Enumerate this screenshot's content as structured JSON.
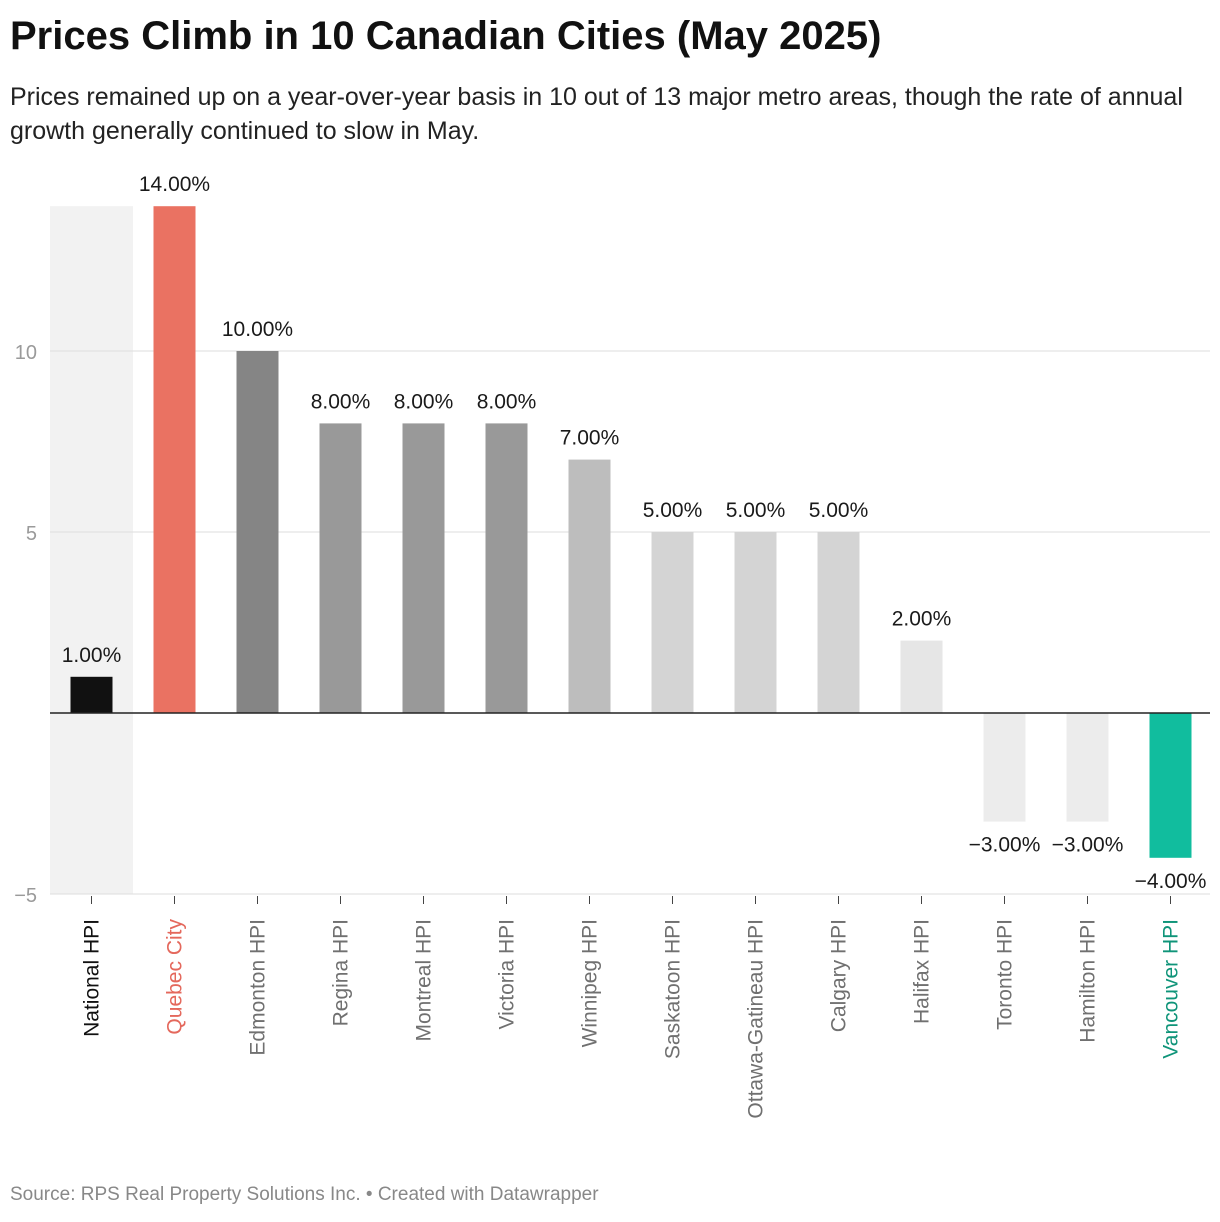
{
  "title": "Prices Climb in 10 Canadian Cities (May 2025)",
  "subtitle": "Prices remained up on a year-over-year basis in 10 out of 13 major metro areas, though the rate of annual growth generally continued to slow in May.",
  "footer": {
    "source": "Source: RPS Real Property Solutions Inc.",
    "separator": "•",
    "credit": "Created with Datawrapper"
  },
  "chart_data": {
    "type": "bar",
    "title": "Prices Climb in 10 Canadian Cities (May 2025)",
    "xlabel": "",
    "ylabel": "",
    "ylim": [
      -5,
      14
    ],
    "yticks": [
      -5,
      5,
      10
    ],
    "ytick_labels": [
      "−5",
      "5",
      "10"
    ],
    "grid": true,
    "legend": "none",
    "categories": [
      "National HPI",
      "Quebec City",
      "Edmonton HPI",
      "Regina HPI",
      "Montreal HPI",
      "Victoria HPI",
      "Winnipeg HPI",
      "Saskatoon HPI",
      "Ottawa-Gatineau HPI",
      "Calgary HPI",
      "Halifax HPI",
      "Toronto HPI",
      "Hamilton HPI",
      "Vancouver HPI"
    ],
    "values": [
      1,
      14,
      10,
      8,
      8,
      8,
      7,
      5,
      5,
      5,
      2,
      -3,
      -3,
      -4
    ],
    "value_labels": [
      "1.00%",
      "14.00%",
      "10.00%",
      "8.00%",
      "8.00%",
      "8.00%",
      "7.00%",
      "5.00%",
      "5.00%",
      "5.00%",
      "2.00%",
      "−3.00%",
      "−3.00%",
      "−4.00%"
    ],
    "bar_colors": [
      "#111111",
      "#ea7262",
      "#858585",
      "#999999",
      "#999999",
      "#999999",
      "#bdbdbd",
      "#d4d4d4",
      "#d4d4d4",
      "#d4d4d4",
      "#e6e6e6",
      "#ececec",
      "#ececec",
      "#11bd9e"
    ],
    "label_colors": [
      "#111111",
      "#e4685c",
      "#707070",
      "#707070",
      "#707070",
      "#707070",
      "#707070",
      "#707070",
      "#707070",
      "#707070",
      "#707070",
      "#707070",
      "#707070",
      "#0f9479"
    ],
    "highlight_band_category": "National HPI",
    "highlight_band_color": "#f2f2f2"
  }
}
